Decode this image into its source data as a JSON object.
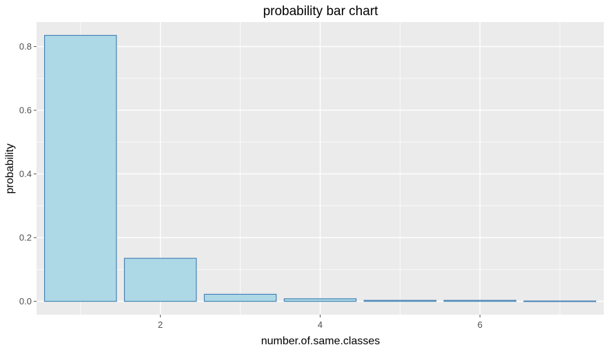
{
  "chart_data": {
    "type": "bar",
    "title": "probability bar chart",
    "xlabel": "number.of.same.classes",
    "ylabel": "probability",
    "categories": [
      1,
      2,
      3,
      4,
      5,
      6,
      7
    ],
    "values": [
      0.835,
      0.135,
      0.022,
      0.008,
      0.003,
      0.003,
      0.001
    ],
    "xlim": [
      0.45,
      7.55
    ],
    "ylim": [
      -0.042,
      0.877
    ],
    "xticks": [
      2,
      4,
      6
    ],
    "yticks": [
      0.0,
      0.2,
      0.4,
      0.6,
      0.8
    ],
    "xtick_labels": [
      "2",
      "4",
      "6"
    ],
    "ytick_labels": [
      "0.0",
      "0.2",
      "0.4",
      "0.6",
      "0.8"
    ],
    "bar_fill": "#add8e6",
    "bar_outline": "#4682b4",
    "panel_background": "#ebebeb",
    "grid": true
  }
}
